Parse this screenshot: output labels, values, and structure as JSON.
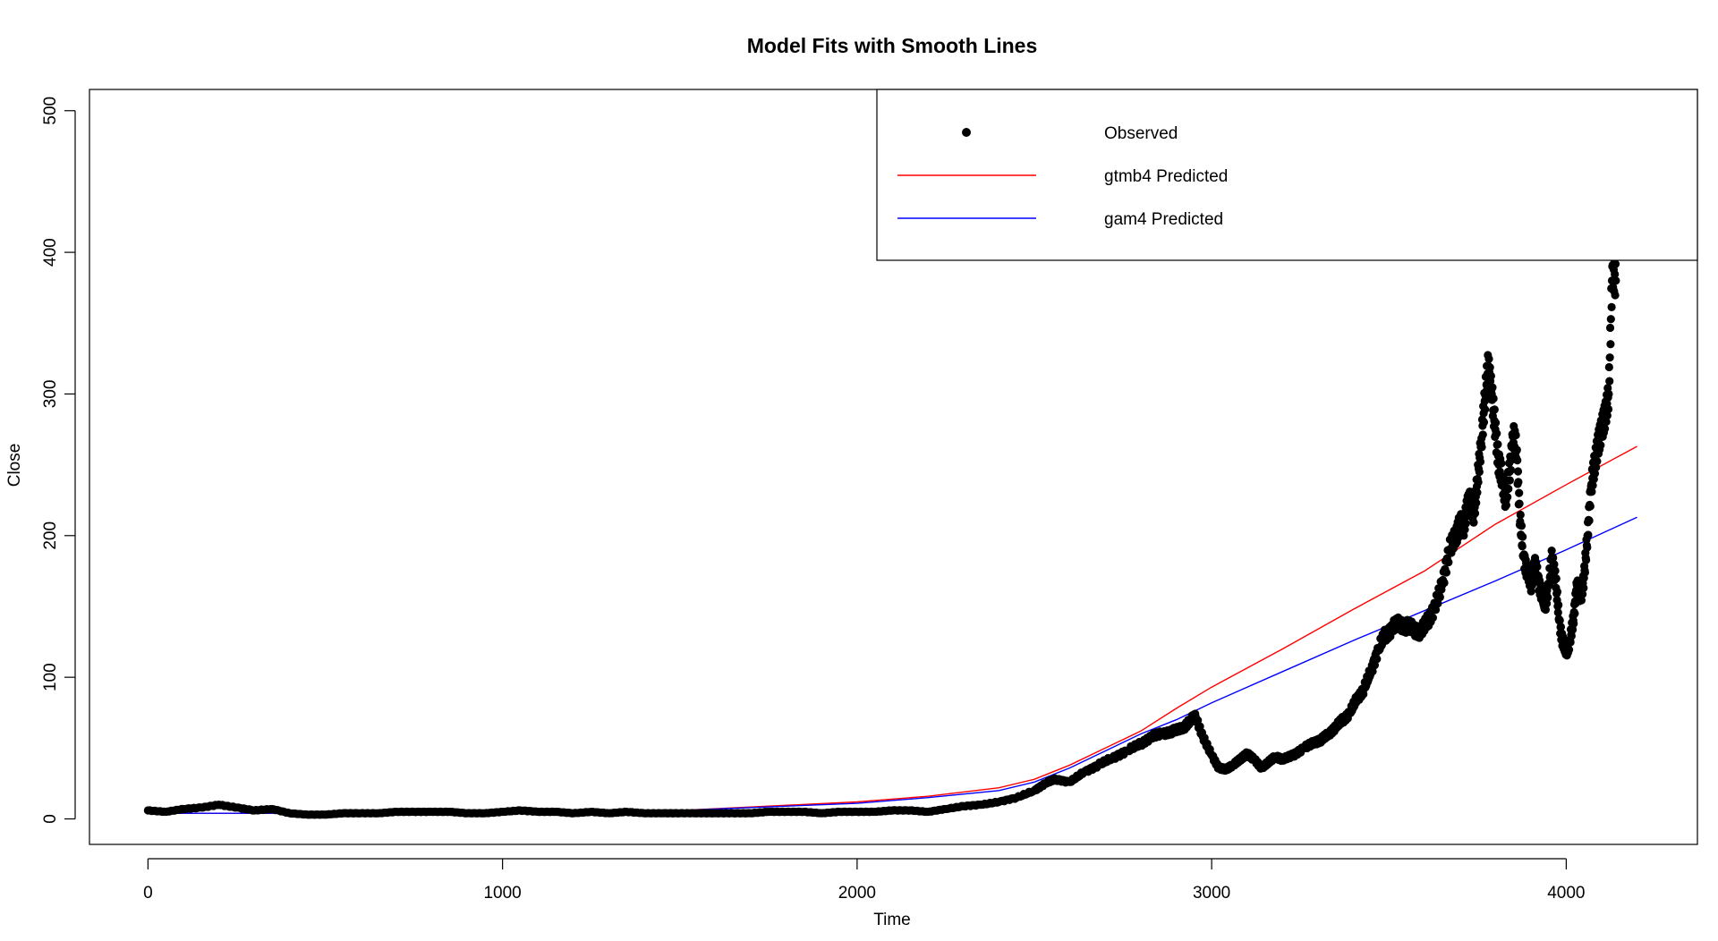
{
  "chart_data": {
    "type": "scatter",
    "title": "Model Fits with Smooth Lines",
    "xlabel": "Time",
    "ylabel": "Close",
    "xlim": [
      -165,
      4370
    ],
    "ylim": [
      -18,
      515
    ],
    "xticks": [
      0,
      1000,
      2000,
      3000,
      4000
    ],
    "yticks": [
      0,
      100,
      200,
      300,
      400,
      500
    ],
    "grid": false,
    "legend_position": "top-right",
    "series": [
      {
        "name": "Observed",
        "kind": "points",
        "color": "#000000",
        "x": [
          0,
          50,
          100,
          150,
          200,
          250,
          300,
          350,
          400,
          450,
          500,
          550,
          600,
          650,
          700,
          750,
          800,
          850,
          900,
          950,
          1000,
          1050,
          1100,
          1150,
          1200,
          1250,
          1300,
          1350,
          1400,
          1450,
          1500,
          1550,
          1600,
          1650,
          1700,
          1750,
          1800,
          1850,
          1900,
          1950,
          2000,
          2050,
          2100,
          2150,
          2200,
          2250,
          2300,
          2350,
          2400,
          2450,
          2500,
          2530,
          2560,
          2600,
          2640,
          2680,
          2720,
          2760,
          2800,
          2830,
          2860,
          2890,
          2920,
          2940,
          2955,
          2975,
          3000,
          3020,
          3040,
          3060,
          3080,
          3100,
          3120,
          3140,
          3160,
          3180,
          3200,
          3230,
          3260,
          3290,
          3310,
          3330,
          3350,
          3370,
          3390,
          3410,
          3430,
          3450,
          3470,
          3490,
          3510,
          3530,
          3550,
          3570,
          3590,
          3610,
          3630,
          3650,
          3670,
          3690,
          3700,
          3710,
          3720,
          3730,
          3740,
          3750,
          3760,
          3770,
          3780,
          3790,
          3800,
          3810,
          3820,
          3830,
          3840,
          3850,
          3860,
          3870,
          3880,
          3890,
          3900,
          3910,
          3920,
          3930,
          3940,
          3950,
          3960,
          3970,
          3980,
          3990,
          4000,
          4010,
          4020,
          4030,
          4040,
          4050,
          4060,
          4070,
          4080,
          4090,
          4100,
          4110,
          4120,
          4130,
          4140
        ],
        "y": [
          6,
          5,
          7,
          8,
          10,
          8,
          6,
          7,
          4,
          3,
          3,
          4,
          4,
          4,
          5,
          5,
          5,
          5,
          4,
          4,
          5,
          6,
          5,
          5,
          4,
          5,
          4,
          5,
          4,
          4,
          4,
          4,
          4,
          4,
          4,
          5,
          5,
          5,
          4,
          5,
          5,
          5,
          6,
          6,
          5,
          7,
          9,
          10,
          12,
          15,
          20,
          25,
          28,
          26,
          33,
          38,
          43,
          48,
          53,
          58,
          60,
          62,
          64,
          70,
          72,
          58,
          45,
          36,
          35,
          38,
          42,
          46,
          42,
          36,
          40,
          44,
          42,
          45,
          50,
          54,
          56,
          60,
          65,
          70,
          75,
          85,
          92,
          105,
          120,
          130,
          135,
          138,
          136,
          134,
          132,
          140,
          150,
          165,
          190,
          200,
          210,
          205,
          220,
          225,
          215,
          240,
          265,
          295,
          320,
          300,
          275,
          250,
          240,
          225,
          245,
          270,
          260,
          210,
          185,
          175,
          165,
          180,
          170,
          160,
          150,
          165,
          185,
          170,
          140,
          125,
          118,
          125,
          140,
          165,
          155,
          170,
          200,
          235,
          250,
          265,
          275,
          285,
          300,
          390,
          380
        ]
      },
      {
        "name": "gtmb4 Predicted",
        "kind": "line",
        "color": "#ff0000",
        "x": [
          0,
          500,
          1000,
          1500,
          2000,
          2200,
          2400,
          2500,
          2600,
          2700,
          2800,
          2900,
          3000,
          3200,
          3400,
          3600,
          3800,
          4000,
          4200
        ],
        "y": [
          4,
          4,
          5,
          6,
          12,
          16,
          22,
          28,
          38,
          50,
          62,
          78,
          93,
          120,
          148,
          175,
          208,
          236,
          263
        ]
      },
      {
        "name": "gam4 Predicted",
        "kind": "line",
        "color": "#0000ff",
        "x": [
          0,
          500,
          1000,
          1500,
          2000,
          2200,
          2400,
          2500,
          2600,
          2700,
          2800,
          2900,
          3000,
          3200,
          3400,
          3600,
          3800,
          4000,
          4200
        ],
        "y": [
          4,
          4,
          5,
          6,
          11,
          15,
          20,
          26,
          36,
          48,
          60,
          70,
          82,
          104,
          126,
          147,
          168,
          190,
          213
        ]
      }
    ]
  }
}
